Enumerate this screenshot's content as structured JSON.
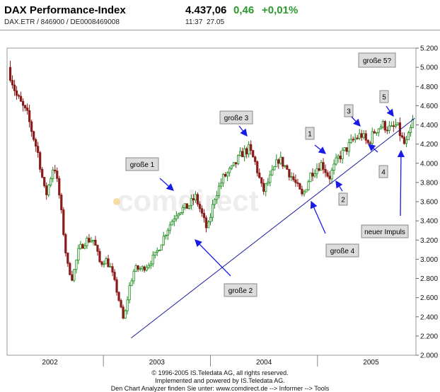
{
  "header": {
    "title": "DAX Performance-Index",
    "subtitle": "DAX.ETR / 846900 / DE0008469008",
    "price": "4.437,06",
    "change": "0,46",
    "change_pct": "+0,01%",
    "time": "11:37",
    "date": "27.05"
  },
  "watermark": "comdirect",
  "footer": {
    "line1": "© 1996-2005 IS.Teledata AG, all rights reserved.",
    "line2": "Implemented and powered by IS.Teledata AG.",
    "line3": "Den Chart Analyzer finden Sie unter: www.comdirect.de --> Informer --> Tools"
  },
  "colors": {
    "up": "#1a8a1a",
    "down": "#8b1a1a",
    "trend": "#1a1aa0",
    "arrow": "#1a1ae6",
    "box": "#dcdcdc"
  },
  "chart_data": {
    "type": "candlestick",
    "title": "",
    "xlabel": "",
    "ylabel": "",
    "y_ticks": [
      "5.200",
      "5.000",
      "4.800",
      "4.600",
      "4.400",
      "4.200",
      "4.000",
      "3.800",
      "3.600",
      "3.400",
      "3.200",
      "3.000",
      "2.800",
      "2.600",
      "2.400",
      "2.200",
      "2.000"
    ],
    "ylim": [
      2000,
      5200
    ],
    "xlim": [
      2001.6,
      2005.42
    ],
    "x_ticks": [
      {
        "label": "2002",
        "x": 2002.0
      },
      {
        "label": "2003",
        "x": 2003.0
      },
      {
        "label": "2004",
        "x": 2004.0
      },
      {
        "label": "2005",
        "x": 2005.0
      }
    ],
    "year_dividers": [
      2002.5,
      2003.5,
      2004.5
    ],
    "price_path": [
      [
        2001.62,
        5000
      ],
      [
        2001.7,
        4700
      ],
      [
        2001.8,
        4500
      ],
      [
        2001.9,
        4100
      ],
      [
        2001.97,
        3650
      ],
      [
        2002.05,
        4000
      ],
      [
        2002.1,
        3650
      ],
      [
        2002.17,
        2950
      ],
      [
        2002.22,
        2800
      ],
      [
        2002.28,
        3100
      ],
      [
        2002.35,
        3200
      ],
      [
        2002.42,
        3200
      ],
      [
        2002.48,
        2950
      ],
      [
        2002.53,
        3000
      ],
      [
        2002.58,
        2900
      ],
      [
        2002.64,
        2650
      ],
      [
        2002.7,
        2350
      ],
      [
        2002.75,
        2700
      ],
      [
        2002.8,
        2900
      ],
      [
        2002.87,
        2900
      ],
      [
        2002.93,
        2950
      ],
      [
        2003.0,
        3050
      ],
      [
        2003.1,
        3300
      ],
      [
        2003.2,
        3500
      ],
      [
        2003.3,
        3550
      ],
      [
        2003.37,
        3650
      ],
      [
        2003.42,
        3500
      ],
      [
        2003.48,
        3300
      ],
      [
        2003.55,
        3650
      ],
      [
        2003.63,
        3850
      ],
      [
        2003.72,
        3950
      ],
      [
        2003.8,
        4100
      ],
      [
        2003.87,
        4150
      ],
      [
        2003.93,
        4000
      ],
      [
        2004.0,
        3700
      ],
      [
        2004.07,
        3850
      ],
      [
        2004.15,
        4050
      ],
      [
        2004.22,
        3950
      ],
      [
        2004.3,
        3800
      ],
      [
        2004.37,
        3650
      ],
      [
        2004.45,
        3900
      ],
      [
        2004.5,
        3950
      ],
      [
        2004.55,
        4000
      ],
      [
        2004.62,
        3850
      ],
      [
        2004.7,
        4050
      ],
      [
        2004.78,
        4150
      ],
      [
        2004.85,
        4250
      ],
      [
        2004.92,
        4300
      ],
      [
        2004.98,
        4200
      ],
      [
        2005.05,
        4350
      ],
      [
        2005.12,
        4400
      ],
      [
        2005.2,
        4350
      ],
      [
        2005.25,
        4400
      ],
      [
        2005.3,
        4250
      ],
      [
        2005.33,
        4180
      ],
      [
        2005.37,
        4300
      ],
      [
        2005.4,
        4437
      ]
    ],
    "trendline": [
      [
        2002.76,
        2180
      ],
      [
        2005.41,
        4470
      ]
    ],
    "annotations": [
      {
        "id": "grosse-1",
        "label": "große 1"
      },
      {
        "id": "grosse-2",
        "label": "große 2"
      },
      {
        "id": "grosse-3",
        "label": "große 3"
      },
      {
        "id": "grosse-4",
        "label": "große 4"
      },
      {
        "id": "grosse-5",
        "label": "große 5?"
      },
      {
        "id": "w1",
        "label": "1"
      },
      {
        "id": "w2",
        "label": "2"
      },
      {
        "id": "w3",
        "label": "3"
      },
      {
        "id": "w4",
        "label": "4"
      },
      {
        "id": "w5",
        "label": "5"
      },
      {
        "id": "neuer-impuls",
        "label": "neuer Impuls"
      }
    ]
  }
}
